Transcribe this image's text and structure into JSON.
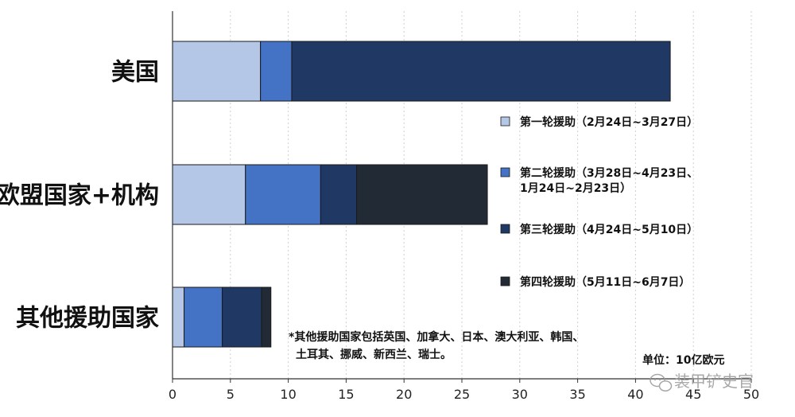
{
  "chart_data": {
    "type": "bar",
    "orientation": "horizontal",
    "stacked": true,
    "categories": [
      "美国",
      "欧盟国家+机构",
      "其他援助国家"
    ],
    "series": [
      {
        "name": "第一轮援助（2月24日~3月27日）",
        "color": "#b4c7e7",
        "values": [
          7.6,
          6.3,
          1.0
        ]
      },
      {
        "name": "第二轮援助（3月28日~4月23日、1月24日~2月23日）",
        "color": "#4472c4",
        "values": [
          2.7,
          6.5,
          3.3
        ]
      },
      {
        "name": "第三轮援助（4月24日~5月10日）",
        "color": "#1f3864",
        "values": [
          32.7,
          3.1,
          3.4
        ]
      },
      {
        "name": "第四轮援助（5月11日~6月7日）",
        "color": "#222a35",
        "values": [
          0,
          11.3,
          0.8
        ]
      }
    ],
    "legend_lines": [
      [
        "第一轮援助（2月24日~3月27日）"
      ],
      [
        "第二轮援助（3月28日~4月23日、",
        "1月24日~2月23日）"
      ],
      [
        "第三轮援助（4月24日~5月10日）"
      ],
      [
        "第四轮援助（5月11日~6月7日）"
      ]
    ],
    "x_ticks": [
      0,
      5,
      10,
      15,
      20,
      25,
      30,
      35,
      40,
      45,
      50
    ],
    "xlim": [
      0,
      50
    ],
    "grid": "vertical dashed",
    "legend_position": "right",
    "annotation_lines": [
      "*其他援助国家包括英国、加拿大、日本、澳大利亚、韩国、",
      "土耳其、挪威、新西兰、瑞士。"
    ],
    "unit_label": "单位：10亿欧元",
    "watermark": "装甲铲史官"
  }
}
